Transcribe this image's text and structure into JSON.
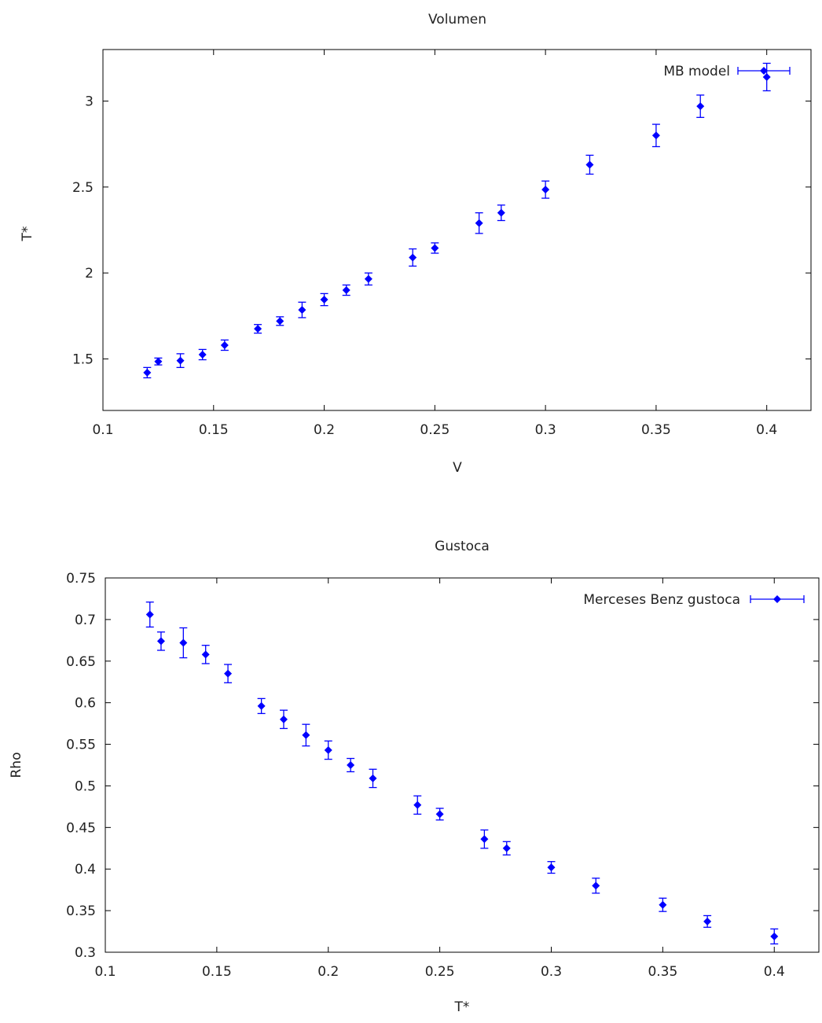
{
  "chart_data": [
    {
      "type": "scatter",
      "title": "Volumen",
      "xlabel": "V",
      "ylabel": "T*",
      "xlim": [
        0.1,
        0.42
      ],
      "ylim": [
        1.2,
        3.3
      ],
      "xticks": [
        "0.1",
        "0.15",
        "0.2",
        "0.25",
        "0.3",
        "0.35",
        "0.4"
      ],
      "yticks": [
        "1.5",
        "2",
        "2.5",
        "3"
      ],
      "legend_position": "top-right",
      "grid": false,
      "error_bars": true,
      "series": [
        {
          "name": "MB model",
          "color": "#0000ff",
          "x": [
            0.12,
            0.125,
            0.135,
            0.145,
            0.155,
            0.17,
            0.18,
            0.19,
            0.2,
            0.21,
            0.22,
            0.24,
            0.25,
            0.27,
            0.28,
            0.3,
            0.32,
            0.35,
            0.37,
            0.4
          ],
          "y": [
            1.42,
            1.485,
            1.49,
            1.525,
            1.58,
            1.675,
            1.72,
            1.785,
            1.845,
            1.9,
            1.965,
            2.09,
            2.145,
            2.29,
            2.35,
            2.485,
            2.63,
            2.8,
            2.97,
            3.14
          ],
          "err": [
            0.03,
            0.02,
            0.04,
            0.03,
            0.03,
            0.025,
            0.025,
            0.045,
            0.035,
            0.03,
            0.035,
            0.05,
            0.03,
            0.06,
            0.045,
            0.05,
            0.055,
            0.065,
            0.065,
            0.08
          ]
        }
      ]
    },
    {
      "type": "scatter",
      "title": "Gustoca",
      "xlabel": "T*",
      "ylabel": "Rho",
      "xlim": [
        0.1,
        0.42
      ],
      "ylim": [
        0.3,
        0.75
      ],
      "xticks": [
        "0.1",
        "0.15",
        "0.2",
        "0.25",
        "0.3",
        "0.35",
        "0.4"
      ],
      "yticks": [
        "0.3",
        "0.35",
        "0.4",
        "0.45",
        "0.5",
        "0.55",
        "0.6",
        "0.65",
        "0.7",
        "0.75"
      ],
      "legend_position": "top-right",
      "grid": false,
      "error_bars": true,
      "series": [
        {
          "name": "Merceses Benz gustoca",
          "color": "#0000ff",
          "x": [
            0.12,
            0.125,
            0.135,
            0.145,
            0.155,
            0.17,
            0.18,
            0.19,
            0.2,
            0.21,
            0.22,
            0.24,
            0.25,
            0.27,
            0.28,
            0.3,
            0.32,
            0.35,
            0.37,
            0.4
          ],
          "y": [
            0.706,
            0.674,
            0.672,
            0.658,
            0.635,
            0.596,
            0.58,
            0.561,
            0.543,
            0.525,
            0.509,
            0.477,
            0.466,
            0.436,
            0.425,
            0.402,
            0.38,
            0.357,
            0.337,
            0.319
          ],
          "err": [
            0.015,
            0.011,
            0.018,
            0.011,
            0.011,
            0.009,
            0.011,
            0.013,
            0.011,
            0.008,
            0.011,
            0.011,
            0.007,
            0.011,
            0.008,
            0.007,
            0.009,
            0.008,
            0.007,
            0.009
          ]
        }
      ]
    }
  ]
}
